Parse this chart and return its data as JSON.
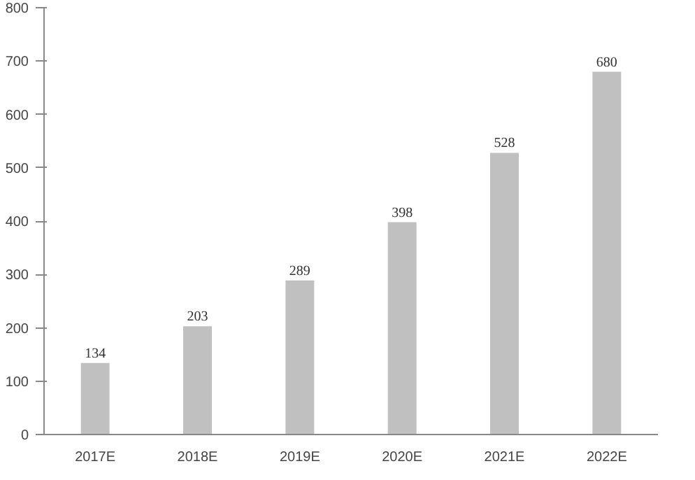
{
  "chart_data": {
    "type": "bar",
    "categories": [
      "2017E",
      "2018E",
      "2019E",
      "2020E",
      "2021E",
      "2022E"
    ],
    "values": [
      134,
      203,
      289,
      398,
      528,
      680
    ],
    "color": "#c0c0c0",
    "ylim": [
      0,
      800
    ],
    "yticks": [
      0,
      100,
      200,
      300,
      400,
      500,
      600,
      700,
      800
    ],
    "grid": false,
    "data_labels": true
  }
}
